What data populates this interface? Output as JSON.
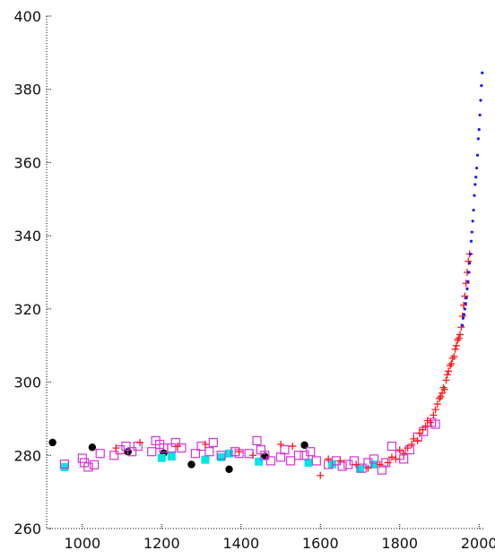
{
  "chart_data": {
    "type": "scatter",
    "title": "",
    "xlabel": "",
    "ylabel": "",
    "xlim": [
      910,
      2013
    ],
    "ylim": [
      260,
      400
    ],
    "x_ticks": [
      1000,
      1200,
      1400,
      1600,
      1800,
      2000
    ],
    "y_ticks": [
      260,
      280,
      300,
      320,
      340,
      360,
      380,
      400
    ],
    "grid": false,
    "legend": "none",
    "series": [
      {
        "marker": "filled-circle",
        "color": "#000000",
        "points": [
          [
            925,
            283.5
          ],
          [
            1025,
            282.2
          ],
          [
            1115,
            281.0
          ],
          [
            1205,
            280.6
          ],
          [
            1275,
            277.5
          ],
          [
            1370,
            276.2
          ],
          [
            1460,
            279.7
          ],
          [
            1560,
            282.8
          ]
        ]
      },
      {
        "marker": "filled-square",
        "color": "#00e5e5",
        "points": [
          [
            955,
            276.8
          ],
          [
            1200,
            279.3
          ],
          [
            1225,
            279.7
          ],
          [
            1310,
            278.8
          ],
          [
            1350,
            279.5
          ],
          [
            1370,
            280.5
          ],
          [
            1445,
            278.3
          ],
          [
            1570,
            278.0
          ],
          [
            1630,
            277.6
          ],
          [
            1700,
            276.3
          ],
          [
            1735,
            277.5
          ]
        ]
      },
      {
        "marker": "open-square",
        "color": "#d633d6",
        "points": [
          [
            955,
            277.6
          ],
          [
            1000,
            279.2
          ],
          [
            1005,
            278.0
          ],
          [
            1015,
            276.8
          ],
          [
            1030,
            277.4
          ],
          [
            1045,
            280.5
          ],
          [
            1080,
            280.0
          ],
          [
            1095,
            281.5
          ],
          [
            1110,
            282.5
          ],
          [
            1125,
            281.0
          ],
          [
            1140,
            282.5
          ],
          [
            1175,
            281.0
          ],
          [
            1185,
            284.0
          ],
          [
            1195,
            283.0
          ],
          [
            1205,
            282.0
          ],
          [
            1225,
            282.0
          ],
          [
            1235,
            283.5
          ],
          [
            1250,
            282.0
          ],
          [
            1285,
            280.5
          ],
          [
            1300,
            282.5
          ],
          [
            1320,
            281.0
          ],
          [
            1330,
            283.5
          ],
          [
            1350,
            280.0
          ],
          [
            1385,
            281.0
          ],
          [
            1395,
            280.5
          ],
          [
            1420,
            280.5
          ],
          [
            1440,
            284.0
          ],
          [
            1450,
            281.5
          ],
          [
            1460,
            280.0
          ],
          [
            1475,
            278.5
          ],
          [
            1500,
            279.5
          ],
          [
            1510,
            281.5
          ],
          [
            1525,
            278.5
          ],
          [
            1545,
            280.0
          ],
          [
            1560,
            280.0
          ],
          [
            1575,
            281.0
          ],
          [
            1590,
            278.5
          ],
          [
            1620,
            277.5
          ],
          [
            1640,
            278.5
          ],
          [
            1655,
            277.0
          ],
          [
            1670,
            277.5
          ],
          [
            1685,
            278.5
          ],
          [
            1705,
            276.5
          ],
          [
            1720,
            278.0
          ],
          [
            1735,
            279.0
          ],
          [
            1755,
            276.0
          ],
          [
            1765,
            278.0
          ],
          [
            1780,
            282.5
          ],
          [
            1800,
            280.0
          ],
          [
            1810,
            279.0
          ],
          [
            1825,
            281.5
          ],
          [
            1845,
            285.0
          ],
          [
            1860,
            286.5
          ],
          [
            1880,
            289.0
          ],
          [
            1890,
            288.5
          ]
        ]
      },
      {
        "marker": "plus",
        "color": "#ff1a1a",
        "points": [
          [
            1085,
            282.0
          ],
          [
            1145,
            283.5
          ],
          [
            1240,
            282.5
          ],
          [
            1310,
            283.0
          ],
          [
            1395,
            281.0
          ],
          [
            1430,
            280.0
          ],
          [
            1500,
            283.0
          ],
          [
            1530,
            282.5
          ],
          [
            1600,
            274.5
          ],
          [
            1620,
            279.0
          ],
          [
            1650,
            278.5
          ],
          [
            1690,
            277.5
          ],
          [
            1720,
            276.5
          ],
          [
            1750,
            277.5
          ],
          [
            1770,
            278.0
          ],
          [
            1780,
            279.5
          ],
          [
            1790,
            279.0
          ],
          [
            1800,
            281.5
          ],
          [
            1810,
            280.5
          ],
          [
            1820,
            282.0
          ],
          [
            1830,
            283.0
          ],
          [
            1835,
            284.5
          ],
          [
            1845,
            284.0
          ],
          [
            1850,
            286.0
          ],
          [
            1858,
            287.0
          ],
          [
            1865,
            288.0
          ],
          [
            1870,
            289.5
          ],
          [
            1877,
            289.0
          ],
          [
            1885,
            291.0
          ],
          [
            1890,
            292.5
          ],
          [
            1895,
            294.0
          ],
          [
            1900,
            295.5
          ],
          [
            1903,
            296.0
          ],
          [
            1907,
            297.0
          ],
          [
            1910,
            298.5
          ],
          [
            1913,
            298.0
          ],
          [
            1917,
            300.5
          ],
          [
            1920,
            302.0
          ],
          [
            1923,
            303.0
          ],
          [
            1927,
            304.5
          ],
          [
            1930,
            305.0
          ],
          [
            1933,
            306.5
          ],
          [
            1937,
            307.0
          ],
          [
            1940,
            309.0
          ],
          [
            1943,
            310.0
          ],
          [
            1946,
            311.5
          ],
          [
            1949,
            312.0
          ],
          [
            1952,
            313.0
          ],
          [
            1955,
            315.0
          ],
          [
            1958,
            318.0
          ],
          [
            1961,
            321.0
          ],
          [
            1964,
            323.5
          ],
          [
            1967,
            327.0
          ],
          [
            1970,
            330.0
          ],
          [
            1973,
            333.0
          ],
          [
            1976,
            335.0
          ]
        ]
      },
      {
        "marker": "small-dot",
        "color": "#1a1aff",
        "points": [
          [
            1958,
            315.5
          ],
          [
            1960,
            317.5
          ],
          [
            1962,
            318.5
          ],
          [
            1964,
            320.0
          ],
          [
            1966,
            321.5
          ],
          [
            1968,
            323.0
          ],
          [
            1970,
            325.5
          ],
          [
            1972,
            327.5
          ],
          [
            1974,
            330.0
          ],
          [
            1976,
            332.5
          ],
          [
            1978,
            335.0
          ],
          [
            1980,
            338.5
          ],
          [
            1982,
            341.0
          ],
          [
            1984,
            344.0
          ],
          [
            1986,
            347.0
          ],
          [
            1988,
            351.0
          ],
          [
            1990,
            354.0
          ],
          [
            1992,
            356.0
          ],
          [
            1994,
            358.5
          ],
          [
            1996,
            362.0
          ],
          [
            1998,
            366.5
          ],
          [
            2000,
            369.0
          ],
          [
            2002,
            373.0
          ],
          [
            2004,
            377.0
          ],
          [
            2006,
            381.0
          ],
          [
            2008,
            384.5
          ]
        ]
      }
    ]
  }
}
